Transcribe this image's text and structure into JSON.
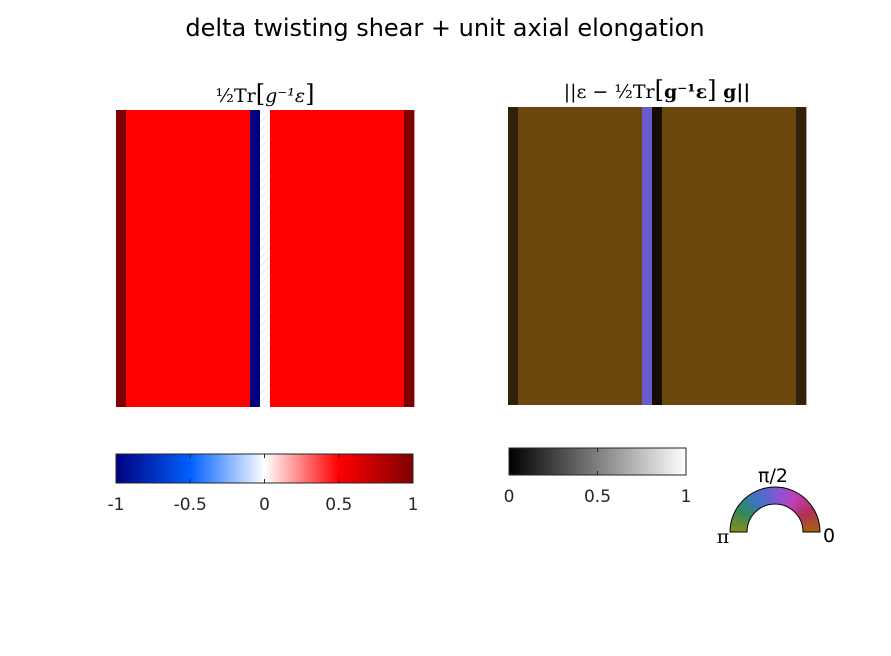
{
  "figure": {
    "title": "delta twisting shear + unit axial elongation"
  },
  "chart_data": [
    {
      "type": "heatmap",
      "title": "½Tr[g⁻¹ε]",
      "title_parts": {
        "coef": "½",
        "tr": "Tr",
        "arg": "g⁻¹ε"
      },
      "column_values": [
        1,
        0.5,
        -1,
        0,
        0.5,
        1
      ],
      "column_widths": [
        10,
        124,
        10,
        10,
        134,
        10
      ],
      "colorbar": {
        "ticks": [
          -1,
          -0.5,
          0,
          0.5,
          1
        ],
        "tick_labels": [
          "-1",
          "-0.5",
          "0",
          "0.5",
          "1"
        ],
        "range": [
          -1,
          1
        ],
        "colors": [
          "#00007f",
          "#0060ff",
          "#ffffff",
          "#ff0000",
          "#7f0000"
        ]
      },
      "axes_visible": false
    },
    {
      "type": "heatmap",
      "title": "||ε − ½Tr[g⁻¹ε] g||",
      "title_parts": {
        "open": "||ε − ",
        "coef": "½",
        "tr": "Tr",
        "arg": "g⁻¹ε",
        "close": " g||"
      },
      "columns": [
        {
          "width": 10,
          "color": "#33200b"
        },
        {
          "width": 124,
          "color": "#6b470e"
        },
        {
          "width": 10,
          "color": "#6a5acd"
        },
        {
          "width": 10,
          "color": "#130d04"
        },
        {
          "width": 134,
          "color": "#6b470e"
        },
        {
          "width": 10,
          "color": "#33200b"
        }
      ],
      "colorbar": {
        "ticks": [
          0,
          0.5,
          1
        ],
        "tick_labels": [
          "0",
          "0.5",
          "1"
        ],
        "range": [
          0,
          1
        ],
        "colors": [
          "#000000",
          "#ffffff"
        ]
      },
      "hue_legend": {
        "labels": {
          "top": "π/2",
          "left": "π",
          "right": "0"
        },
        "colors": [
          "#8a8a1e",
          "#2e8b57",
          "#3b73c7",
          "#7a5ad6",
          "#c040c0",
          "#b0305a",
          "#a6620f"
        ]
      },
      "axes_visible": false
    }
  ]
}
